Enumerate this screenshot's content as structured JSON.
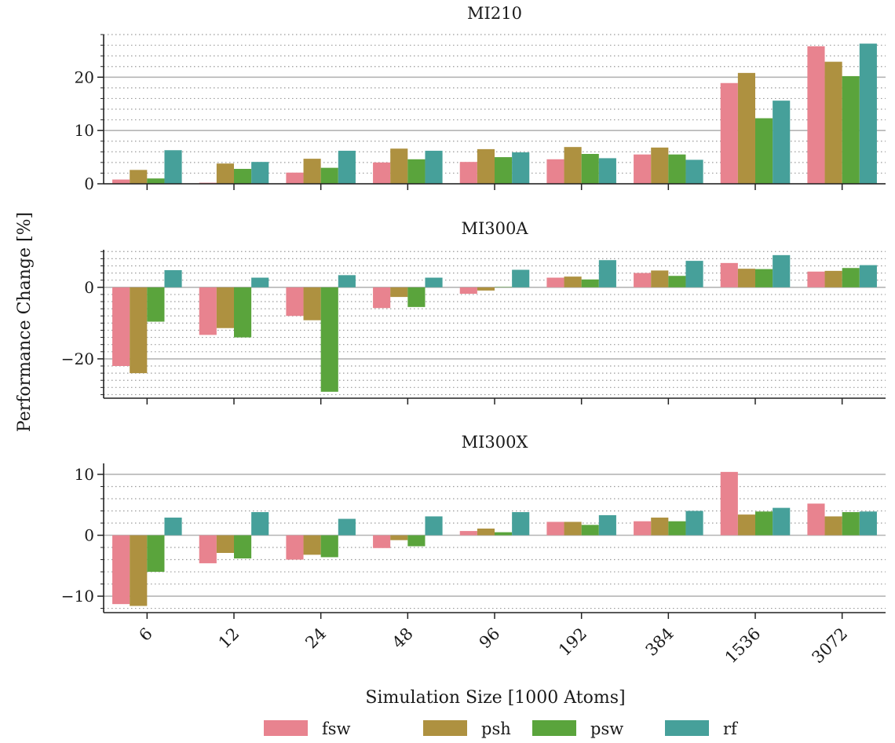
{
  "chart_data": {
    "type": "bar",
    "categories": [
      "6",
      "12",
      "24",
      "48",
      "96",
      "192",
      "384",
      "1536",
      "3072"
    ],
    "xlabel": "Simulation Size [1000 Atoms]",
    "ylabel": "Performance Change [%]",
    "legend": {
      "placement": "bottom-center",
      "entries": [
        "fsw",
        "psh",
        "psw",
        "rf"
      ]
    },
    "colors": {
      "fsw": "#e8838f",
      "psh": "#ae9140",
      "psw": "#5aa43c",
      "rf": "#46a09a"
    },
    "grid": "major solid gray, minor dotted gray (horizontal)",
    "panels": [
      {
        "title": "MI210",
        "ylim": [
          0,
          28
        ],
        "yticks": [
          0,
          10,
          20
        ],
        "ytick_labels": [
          "0",
          "10",
          "20"
        ],
        "series": [
          {
            "name": "fsw",
            "values": [
              0.8,
              0.2,
              2.1,
              4.0,
              4.1,
              4.6,
              5.5,
              18.9,
              25.8
            ]
          },
          {
            "name": "psh",
            "values": [
              2.6,
              3.8,
              4.7,
              6.6,
              6.5,
              6.9,
              6.8,
              20.8,
              22.9
            ]
          },
          {
            "name": "psw",
            "values": [
              1.0,
              2.8,
              3.0,
              4.6,
              5.0,
              5.6,
              5.5,
              12.3,
              20.2
            ]
          },
          {
            "name": "rf",
            "values": [
              6.3,
              4.1,
              6.2,
              6.2,
              5.9,
              4.8,
              4.5,
              15.6,
              26.3
            ]
          }
        ]
      },
      {
        "title": "MI300A",
        "ylim": [
          -31,
          10.5
        ],
        "yticks": [
          -20,
          0
        ],
        "ytick_labels": [
          "−20",
          "0"
        ],
        "series": [
          {
            "name": "fsw",
            "values": [
              -22.0,
              -13.3,
              -8.0,
              -5.8,
              -1.8,
              2.7,
              4.0,
              6.8,
              4.4
            ]
          },
          {
            "name": "psh",
            "values": [
              -24.0,
              -11.4,
              -9.2,
              -2.7,
              -0.9,
              3.0,
              4.7,
              5.2,
              4.6
            ]
          },
          {
            "name": "psw",
            "values": [
              -9.6,
              -14.0,
              -29.2,
              -5.5,
              0.1,
              2.2,
              3.2,
              5.1,
              5.4
            ]
          },
          {
            "name": "rf",
            "values": [
              4.8,
              2.7,
              3.4,
              2.7,
              4.9,
              7.6,
              7.4,
              9.0,
              6.2
            ]
          }
        ]
      },
      {
        "title": "MI300X",
        "ylim": [
          -12.7,
          11.8
        ],
        "yticks": [
          -10,
          0,
          10
        ],
        "ytick_labels": [
          "−10",
          "0",
          "10"
        ],
        "series": [
          {
            "name": "fsw",
            "values": [
              -11.3,
              -4.6,
              -4.0,
              -2.1,
              0.7,
              2.2,
              2.3,
              10.4,
              5.2
            ]
          },
          {
            "name": "psh",
            "values": [
              -11.6,
              -2.9,
              -3.2,
              -0.8,
              1.1,
              2.2,
              2.9,
              3.4,
              3.1
            ]
          },
          {
            "name": "psw",
            "values": [
              -6.0,
              -3.8,
              -3.6,
              -1.8,
              0.5,
              1.7,
              2.3,
              3.9,
              3.8
            ]
          },
          {
            "name": "rf",
            "values": [
              2.9,
              3.8,
              2.7,
              3.1,
              3.8,
              3.3,
              4.0,
              4.5,
              3.9
            ]
          }
        ]
      }
    ]
  }
}
